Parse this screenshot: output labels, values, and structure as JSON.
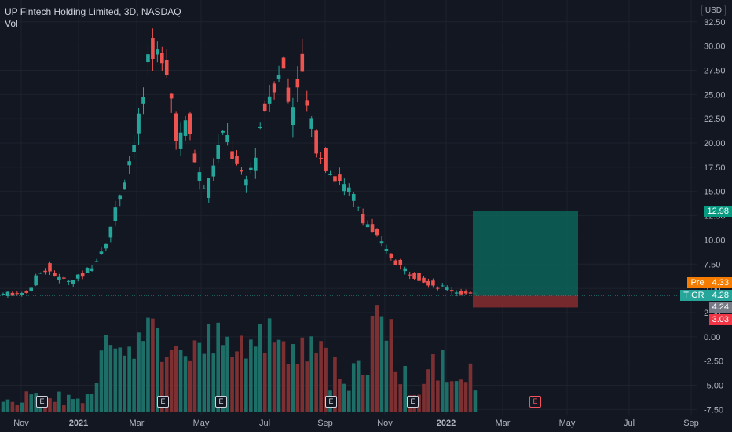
{
  "legend": {
    "title": "UP Fintech Holding Limited, 3D, NASDAQ",
    "vol": "Vol"
  },
  "currency": "USD",
  "colors": {
    "up": "#26a69a",
    "down": "#ef5350",
    "volUp": "#1e6e68",
    "volDown": "#7d3032",
    "pre": "#f57c00",
    "profit": "#0c5f57",
    "loss": "#7a2a2d",
    "stop": "#f23645",
    "target": "#089981"
  },
  "badges": {
    "target": "12.98",
    "pre_label": "Pre",
    "pre_value": "4.33",
    "ticker": "TIGR",
    "last": "4.28",
    "entry": "4.24",
    "stop": "3.03"
  },
  "earnings_label": "E",
  "chart_data": {
    "type": "candlestick",
    "title": "UP Fintech Holding Limited, 3D, NASDAQ",
    "interval": "3D",
    "ylim": [
      -7.5,
      34
    ],
    "y_ticks": [
      "32.50",
      "30.00",
      "27.50",
      "25.00",
      "22.50",
      "20.00",
      "17.50",
      "15.00",
      "12.50",
      "10.00",
      "7.50",
      "5.00",
      "2.50",
      "0.00",
      "-2.50",
      "-5.00",
      "-7.50"
    ],
    "x_ticks": [
      "Nov",
      "2021",
      "Mar",
      "May",
      "Jul",
      "Sep",
      "Nov",
      "2022",
      "Mar",
      "May",
      "Jul",
      "Sep"
    ],
    "anchors": [
      [
        0,
        4.4
      ],
      [
        4,
        4.5
      ],
      [
        6,
        4.7
      ],
      [
        8,
        6.5
      ],
      [
        10,
        7.2
      ],
      [
        12,
        6.0
      ],
      [
        15,
        5.8
      ],
      [
        18,
        6.5
      ],
      [
        20,
        7.8
      ],
      [
        22,
        9.5
      ],
      [
        24,
        12.0
      ],
      [
        26,
        16.0
      ],
      [
        28,
        19.0
      ],
      [
        30,
        23.0
      ],
      [
        32,
        31.0
      ],
      [
        34,
        28.0
      ],
      [
        36,
        26.0
      ],
      [
        38,
        20.0
      ],
      [
        40,
        22.0
      ],
      [
        42,
        17.0
      ],
      [
        44,
        15.0
      ],
      [
        46,
        19.0
      ],
      [
        48,
        21.0
      ],
      [
        50,
        18.0
      ],
      [
        52,
        15.5
      ],
      [
        54,
        18.0
      ],
      [
        56,
        23.0
      ],
      [
        58,
        26.0
      ],
      [
        60,
        28.5
      ],
      [
        62,
        23.0
      ],
      [
        64,
        28.0
      ],
      [
        66,
        22.0
      ],
      [
        68,
        19.5
      ],
      [
        70,
        17.5
      ],
      [
        72,
        16.0
      ],
      [
        74,
        15.0
      ],
      [
        76,
        14.0
      ],
      [
        78,
        12.0
      ],
      [
        80,
        10.5
      ],
      [
        82,
        9.0
      ],
      [
        84,
        8.0
      ],
      [
        86,
        7.0
      ],
      [
        88,
        6.5
      ],
      [
        90,
        6.0
      ],
      [
        92,
        5.5
      ],
      [
        94,
        5.2
      ],
      [
        96,
        4.9
      ],
      [
        98,
        4.6
      ],
      [
        100,
        4.4
      ],
      [
        101,
        4.28
      ]
    ],
    "last_close": 4.28,
    "position": {
      "entry": 4.24,
      "target": 12.98,
      "stop": 3.03
    }
  }
}
